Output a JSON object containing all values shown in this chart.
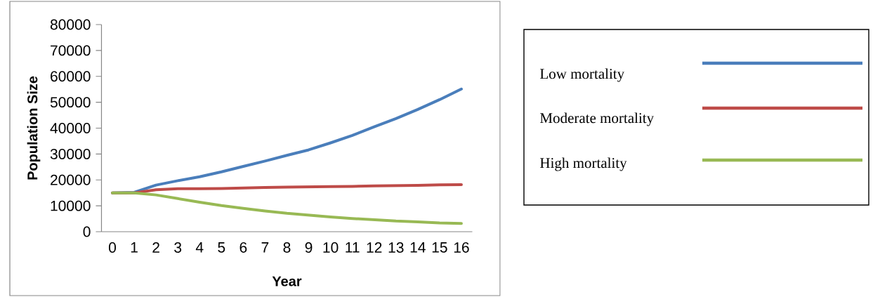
{
  "chart_data": {
    "type": "line",
    "xlabel": "Year",
    "ylabel": "Population Size",
    "categories": [
      "0",
      "1",
      "2",
      "3",
      "4",
      "5",
      "6",
      "7",
      "8",
      "9",
      "10",
      "11",
      "12",
      "13",
      "14",
      "15",
      "16"
    ],
    "ylim": [
      0,
      80000
    ],
    "yticks": [
      0,
      10000,
      20000,
      30000,
      40000,
      50000,
      60000,
      70000,
      80000
    ],
    "grid": false,
    "legend": "right",
    "marker": "none",
    "line_style": "solid",
    "series": [
      {
        "name": "Low mortality",
        "color": "#4a7ebb",
        "values": [
          15000,
          15200,
          18000,
          19700,
          21200,
          23100,
          25200,
          27300,
          29500,
          31600,
          34300,
          37200,
          40500,
          43700,
          47200,
          51000,
          55100
        ]
      },
      {
        "name": "Moderate mortality",
        "color": "#be4b48",
        "values": [
          15000,
          15000,
          16200,
          16600,
          16600,
          16700,
          16900,
          17100,
          17200,
          17300,
          17400,
          17500,
          17700,
          17800,
          17900,
          18100,
          18200
        ]
      },
      {
        "name": "High mortality",
        "color": "#98b954",
        "values": [
          15000,
          15000,
          14200,
          12800,
          11400,
          10100,
          9000,
          8000,
          7100,
          6400,
          5700,
          5100,
          4600,
          4100,
          3800,
          3400,
          3200
        ]
      }
    ]
  }
}
